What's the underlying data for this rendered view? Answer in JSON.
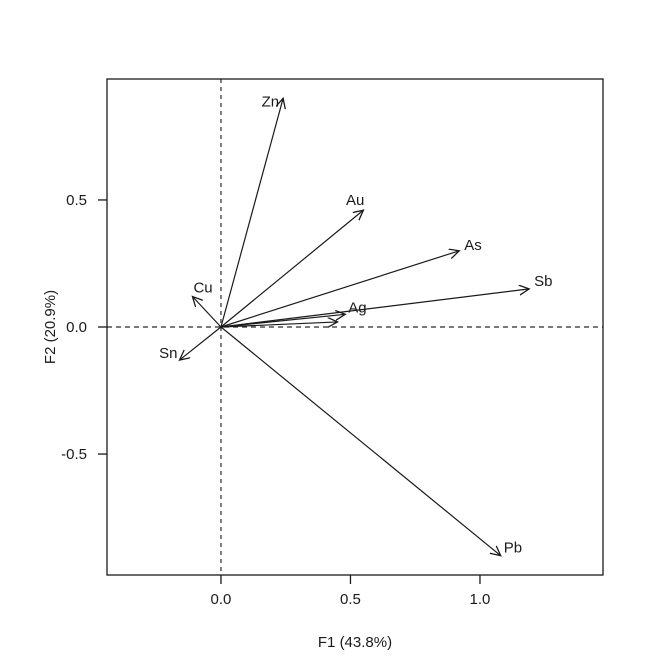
{
  "style": {
    "background": "#ffffff",
    "box_color": "#1a1a1a",
    "arrow_color": "#1a1a1a",
    "text_color": "#1a1a1a",
    "zero_line_h_color": "#2b2b2b",
    "zero_line_v_color": "#555555"
  },
  "chart_data": {
    "type": "scatter",
    "subtype": "pca-loading-arrow-plot",
    "title": "",
    "xlabel": "F1 (43.8%)",
    "ylabel": "F2 (20.9%)",
    "xlim": [
      -0.44,
      1.475
    ],
    "ylim": [
      -0.976,
      0.976
    ],
    "x_ticks": [
      0,
      0.5,
      1.0
    ],
    "x_tick_labels": [
      "0.0",
      "0.5",
      "1.0"
    ],
    "y_ticks": [
      0.5,
      0,
      -0.5
    ],
    "y_tick_labels": [
      "0.5",
      "0.0",
      "-0.5"
    ],
    "grid": false,
    "zero_lines_dashed": true,
    "arrows_from_origin": true,
    "series": [
      {
        "label": "Zn",
        "x": 0.24,
        "y": 0.9,
        "label_anchor": "end",
        "label_dx": -4,
        "label_dy": 8
      },
      {
        "label": "Au",
        "x": 0.55,
        "y": 0.46,
        "label_anchor": "end",
        "label_dx": 1,
        "label_dy": -5
      },
      {
        "label": "As",
        "x": 0.92,
        "y": 0.3,
        "label_anchor": "start",
        "label_dx": 5,
        "label_dy": -1
      },
      {
        "label": "Sb",
        "x": 1.19,
        "y": 0.15,
        "label_anchor": "start",
        "label_dx": 5,
        "label_dy": -3
      },
      {
        "label": "Ag",
        "x": 0.48,
        "y": 0.05,
        "label_anchor": "start",
        "label_dx": 3,
        "label_dy": -2
      },
      {
        "label": "",
        "x": 0.45,
        "y": 0.02,
        "label_anchor": "start",
        "label_dx": 0,
        "label_dy": 0
      },
      {
        "label": "Cu",
        "x": -0.11,
        "y": 0.12,
        "label_anchor": "start",
        "label_dx": 1,
        "label_dy": -4
      },
      {
        "label": "Sn",
        "x": -0.16,
        "y": -0.13,
        "label_anchor": "end",
        "label_dx": -2,
        "label_dy": -2
      },
      {
        "label": "Pb",
        "x": 1.08,
        "y": -0.9,
        "label_anchor": "start",
        "label_dx": 3,
        "label_dy": -3
      }
    ]
  }
}
